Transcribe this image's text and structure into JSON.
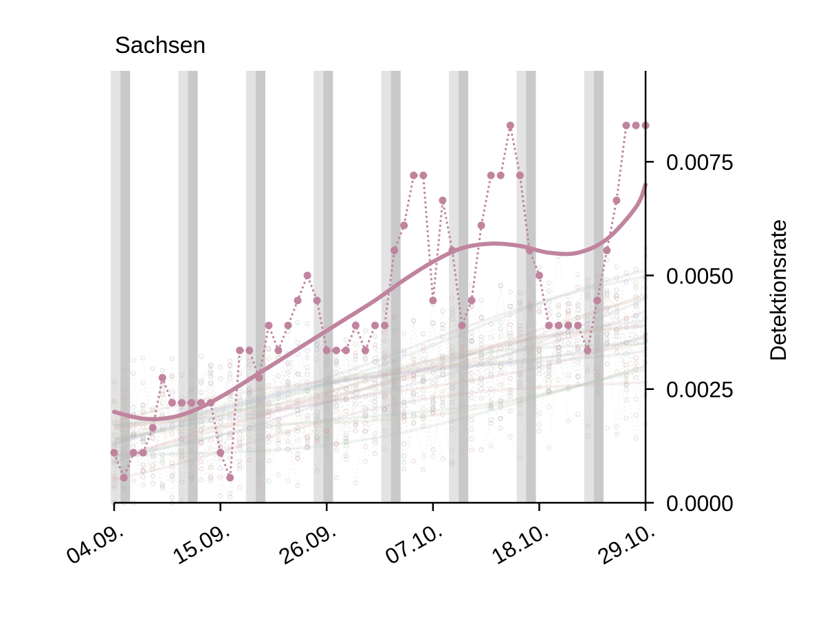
{
  "chart_data": {
    "type": "line",
    "title": "Sachsen",
    "ylabel": "Detektionsrate",
    "xlabel": "",
    "x_tick_labels": [
      "04.09.",
      "15.09.",
      "26.09.",
      "07.10.",
      "18.10.",
      "29.10."
    ],
    "y_tick_labels": [
      "0.0000",
      "0.0025",
      "0.0050",
      "0.0075"
    ],
    "y_ticks": [
      0.0,
      0.0025,
      0.005,
      0.0075
    ],
    "xlim": [
      "04.09.",
      "29.10."
    ],
    "ylim": [
      0.0,
      0.0095
    ],
    "y_axis_position": "right",
    "grid": false,
    "colors": {
      "highlight": "#c0849e",
      "weekend_light": "#e3e3e3",
      "weekend_dark": "#c9c9c9",
      "background_series": [
        "#b0b4c8",
        "#d4a5a5",
        "#c8c4a8",
        "#a8c0b0"
      ]
    },
    "shaded_bands": [
      {
        "start": "04.09.",
        "end": "06.09."
      },
      {
        "start": "11.09.",
        "end": "13.09."
      },
      {
        "start": "18.09.",
        "end": "20.09."
      },
      {
        "start": "25.09.",
        "end": "27.09."
      },
      {
        "start": "02.10.",
        "end": "04.10."
      },
      {
        "start": "09.10.",
        "end": "11.10."
      },
      {
        "start": "16.10.",
        "end": "18.10."
      },
      {
        "start": "23.10.",
        "end": "25.10."
      }
    ],
    "series": [
      {
        "role": "daily",
        "x": [
          "04.09.",
          "05.09.",
          "06.09.",
          "07.09.",
          "08.09.",
          "09.09.",
          "10.09.",
          "11.09.",
          "12.09.",
          "13.09.",
          "14.09.",
          "15.09.",
          "16.09.",
          "17.09.",
          "18.09.",
          "19.09.",
          "20.09.",
          "21.09.",
          "22.09.",
          "23.09.",
          "24.09.",
          "25.09.",
          "26.09.",
          "27.09.",
          "28.09.",
          "29.09.",
          "30.09.",
          "01.10.",
          "02.10.",
          "03.10.",
          "04.10.",
          "05.10.",
          "06.10.",
          "07.10.",
          "08.10.",
          "09.10.",
          "10.10.",
          "11.10.",
          "12.10.",
          "13.10.",
          "14.10.",
          "15.10.",
          "16.10.",
          "17.10.",
          "18.10.",
          "19.10.",
          "20.10.",
          "21.10.",
          "22.10.",
          "23.10.",
          "24.10.",
          "25.10.",
          "26.10.",
          "27.10.",
          "28.10.",
          "29.10."
        ],
        "values": [
          0.0011,
          0.00055,
          0.0011,
          0.0011,
          0.00165,
          0.00275,
          0.0022,
          0.0022,
          0.0022,
          0.0022,
          0.0022,
          0.0011,
          0.00055,
          0.00335,
          0.00335,
          0.00275,
          0.0039,
          0.00335,
          0.0039,
          0.00445,
          0.005,
          0.00445,
          0.00335,
          0.00335,
          0.00335,
          0.0039,
          0.00335,
          0.0039,
          0.0039,
          0.00555,
          0.0061,
          0.0072,
          0.0072,
          0.00445,
          0.00665,
          0.00555,
          0.0039,
          0.00445,
          0.0061,
          0.0072,
          0.0072,
          0.0083,
          0.0072,
          0.00555,
          0.005,
          0.0039,
          0.0039,
          0.0039,
          0.0039,
          0.00335,
          0.00445,
          0.00555,
          0.00665,
          0.0083,
          0.0083,
          0.0083
        ]
      },
      {
        "role": "smoothed",
        "x": [
          "04.09.",
          "07.09.",
          "10.09.",
          "13.09.",
          "16.09.",
          "19.09.",
          "22.09.",
          "25.09.",
          "28.09.",
          "01.10.",
          "04.10.",
          "07.10.",
          "10.10.",
          "13.10.",
          "16.10.",
          "19.10.",
          "22.10.",
          "25.10.",
          "28.10.",
          "29.10."
        ],
        "values": [
          0.002,
          0.00185,
          0.00188,
          0.0021,
          0.00245,
          0.00285,
          0.00325,
          0.00365,
          0.00405,
          0.00445,
          0.0049,
          0.0053,
          0.0056,
          0.0057,
          0.00565,
          0.0055,
          0.0055,
          0.0058,
          0.0065,
          0.007
        ]
      }
    ]
  }
}
